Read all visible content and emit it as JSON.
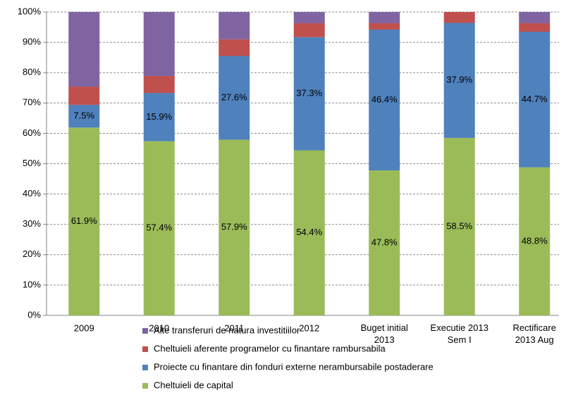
{
  "chart_data": {
    "type": "stacked_bar",
    "categories": [
      "2009",
      "2010",
      "2011",
      "2012",
      "Buget initial\n2013",
      "Executie  2013\nSem I",
      "Rectificare\n2013 Aug"
    ],
    "series": [
      {
        "name": "Cheltuieli de capital",
        "color": "#9bbb59",
        "values": [
          61.9,
          57.4,
          57.9,
          54.4,
          47.8,
          58.5,
          48.8
        ],
        "value_labels": [
          "61.9%",
          "57.4%",
          "57.9%",
          "54.4%",
          "47.8%",
          "58.5%",
          "48.8%"
        ]
      },
      {
        "name": "Proiecte cu finantare din fonduri externe nerambursabile postaderare",
        "color": "#4f81bd",
        "values": [
          7.5,
          15.9,
          27.6,
          37.3,
          46.4,
          37.9,
          44.7
        ],
        "value_labels": [
          "7.5%",
          "15.9%",
          "27.6%",
          "37.3%",
          "46.4%",
          "37.9%",
          "44.7%"
        ]
      },
      {
        "name": "Cheltuieli aferente programelor cu finantare rambursabila",
        "color": "#c0504d",
        "values": [
          6.0,
          5.6,
          5.5,
          4.6,
          2.1,
          3.6,
          2.8
        ]
      },
      {
        "name": "Alte transferuri de natura investitiilor",
        "color": "#8064a2",
        "values": [
          24.6,
          21.1,
          9.0,
          3.7,
          3.7,
          0,
          3.7
        ]
      }
    ],
    "ylim": [
      0,
      100
    ],
    "yticks": [
      {
        "value": 0,
        "label": "0%"
      },
      {
        "value": 10,
        "label": "10%"
      },
      {
        "value": 20,
        "label": "20%"
      },
      {
        "value": 30,
        "label": "30%"
      },
      {
        "value": 40,
        "label": "40%"
      },
      {
        "value": 50,
        "label": "50%"
      },
      {
        "value": 60,
        "label": "60%"
      },
      {
        "value": 70,
        "label": "70%"
      },
      {
        "value": 80,
        "label": "80%"
      },
      {
        "value": 90,
        "label": "90%"
      },
      {
        "value": 100,
        "label": "100%"
      }
    ],
    "grid": true,
    "legend": "bottom"
  }
}
